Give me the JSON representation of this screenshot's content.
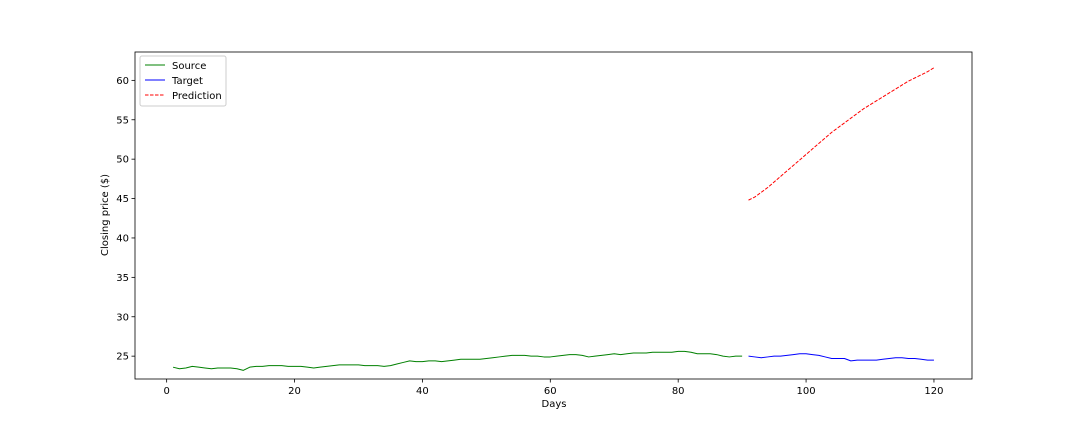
{
  "chart_data": {
    "type": "line",
    "xlabel": "Days",
    "ylabel": "Closing price ($)",
    "xlim": [
      -4.95,
      125.95
    ],
    "ylim": [
      22.1,
      63.6
    ],
    "xticks": [
      0,
      20,
      40,
      60,
      80,
      100,
      120
    ],
    "yticks": [
      25,
      30,
      35,
      40,
      45,
      50,
      55,
      60
    ],
    "grid": false,
    "legend_position": "top-left",
    "series": [
      {
        "name": "Source",
        "color": "#008000",
        "style": "solid",
        "x": [
          1,
          2,
          3,
          4,
          5,
          6,
          7,
          8,
          9,
          10,
          11,
          12,
          13,
          14,
          15,
          16,
          17,
          18,
          19,
          20,
          21,
          22,
          23,
          24,
          25,
          26,
          27,
          28,
          29,
          30,
          31,
          32,
          33,
          34,
          35,
          36,
          37,
          38,
          39,
          40,
          41,
          42,
          43,
          44,
          45,
          46,
          47,
          48,
          49,
          50,
          51,
          52,
          53,
          54,
          55,
          56,
          57,
          58,
          59,
          60,
          61,
          62,
          63,
          64,
          65,
          66,
          67,
          68,
          69,
          70,
          71,
          72,
          73,
          74,
          75,
          76,
          77,
          78,
          79,
          80,
          81,
          82,
          83,
          84,
          85,
          86,
          87,
          88,
          89,
          90
        ],
        "y": [
          23.6,
          23.4,
          23.5,
          23.7,
          23.6,
          23.5,
          23.4,
          23.5,
          23.5,
          23.5,
          23.4,
          23.2,
          23.6,
          23.7,
          23.7,
          23.8,
          23.8,
          23.8,
          23.7,
          23.7,
          23.7,
          23.6,
          23.5,
          23.6,
          23.7,
          23.8,
          23.9,
          23.9,
          23.9,
          23.9,
          23.8,
          23.8,
          23.8,
          23.7,
          23.8,
          24.0,
          24.2,
          24.4,
          24.3,
          24.3,
          24.4,
          24.4,
          24.3,
          24.4,
          24.5,
          24.6,
          24.6,
          24.6,
          24.6,
          24.7,
          24.8,
          24.9,
          25.0,
          25.1,
          25.1,
          25.1,
          25.0,
          25.0,
          24.9,
          24.9,
          25.0,
          25.1,
          25.2,
          25.2,
          25.1,
          24.9,
          25.0,
          25.1,
          25.2,
          25.3,
          25.2,
          25.3,
          25.4,
          25.4,
          25.4,
          25.5,
          25.5,
          25.5,
          25.5,
          25.6,
          25.6,
          25.5,
          25.3,
          25.3,
          25.3,
          25.2,
          25.0,
          24.9,
          25.0,
          25.0
        ]
      },
      {
        "name": "Target",
        "color": "#0000ff",
        "style": "solid",
        "x": [
          91,
          92,
          93,
          94,
          95,
          96,
          97,
          98,
          99,
          100,
          101,
          102,
          103,
          104,
          105,
          106,
          107,
          108,
          109,
          110,
          111,
          112,
          113,
          114,
          115,
          116,
          117,
          118,
          119,
          120
        ],
        "y": [
          25.0,
          24.9,
          24.8,
          24.9,
          25.0,
          25.0,
          25.1,
          25.2,
          25.3,
          25.3,
          25.2,
          25.1,
          24.9,
          24.7,
          24.7,
          24.7,
          24.4,
          24.5,
          24.5,
          24.5,
          24.5,
          24.6,
          24.7,
          24.8,
          24.8,
          24.7,
          24.7,
          24.6,
          24.5,
          24.5
        ]
      },
      {
        "name": "Prediction",
        "color": "#ff0000",
        "style": "dashed",
        "x": [
          91,
          92,
          93,
          94,
          95,
          96,
          97,
          98,
          99,
          100,
          101,
          102,
          103,
          104,
          105,
          106,
          107,
          108,
          109,
          110,
          111,
          112,
          113,
          114,
          115,
          116,
          117,
          118,
          119,
          120
        ],
        "y": [
          44.8,
          45.2,
          45.8,
          46.4,
          47.1,
          47.8,
          48.5,
          49.2,
          49.9,
          50.6,
          51.3,
          52.0,
          52.7,
          53.4,
          54.0,
          54.6,
          55.2,
          55.8,
          56.4,
          56.9,
          57.4,
          57.9,
          58.4,
          58.9,
          59.4,
          59.9,
          60.3,
          60.7,
          61.1,
          61.6
        ]
      }
    ]
  }
}
